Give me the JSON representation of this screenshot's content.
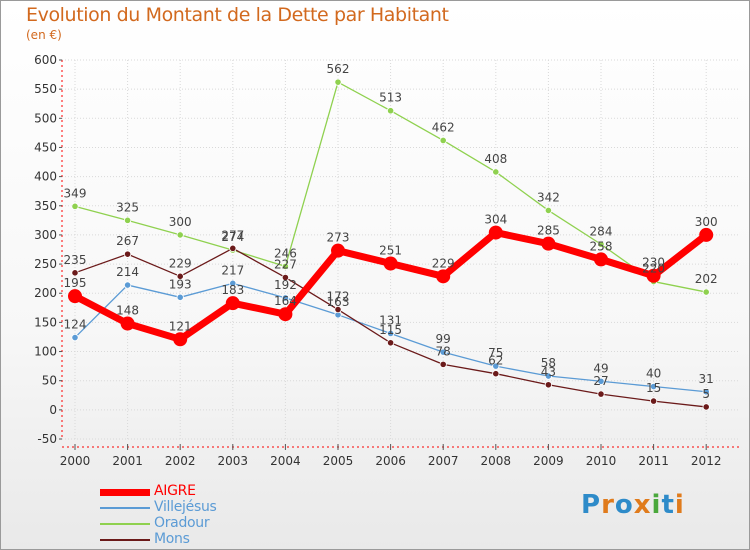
{
  "title": "Evolution du Montant de la Dette par Habitant",
  "unit": "(en €)",
  "logo": {
    "text": "Proxiti",
    "colors": [
      "#2e8bc9",
      "#e07b1c",
      "#2e8bc9",
      "#e07b1c",
      "#4aa83c",
      "#2e8bc9",
      "#e07b1c"
    ]
  },
  "chart_data": {
    "type": "line",
    "x": [
      "2000",
      "2001",
      "2002",
      "2003",
      "2004",
      "2005",
      "2006",
      "2007",
      "2008",
      "2009",
      "2010",
      "2011",
      "2012"
    ],
    "ylim": [
      -50,
      600
    ],
    "yticks": [
      "-50",
      "0",
      "50",
      "100",
      "150",
      "200",
      "250",
      "300",
      "350",
      "400",
      "450",
      "500",
      "550",
      "600"
    ],
    "grid": true,
    "legend_position": "bottom-left",
    "series": [
      {
        "name": "Oradour",
        "color": "#8fd14f",
        "values": [
          349,
          325,
          300,
          274,
          246,
          562,
          513,
          462,
          408,
          342,
          284,
          220,
          202
        ],
        "labels": [
          "349",
          "325",
          "300",
          "274",
          "246",
          "562",
          "513",
          "462",
          "408",
          "342",
          "284",
          "220",
          "202"
        ]
      },
      {
        "name": "Villejésus",
        "color": "#5b9bd5",
        "values": [
          124,
          214,
          193,
          217,
          192,
          163,
          131,
          99,
          75,
          58,
          49,
          40,
          31
        ],
        "labels": [
          "124",
          "214",
          "193",
          "217",
          "192",
          "163",
          "131",
          "99",
          "75",
          "58",
          "49",
          "40",
          "31"
        ]
      },
      {
        "name": "Mons",
        "color": "#6b1a1a",
        "values": [
          235,
          267,
          229,
          277,
          227,
          172,
          115,
          78,
          62,
          43,
          27,
          15,
          5
        ],
        "labels": [
          "235",
          "267",
          "229",
          "277",
          "227",
          "172",
          "115",
          "78",
          "62",
          "43",
          "27",
          "15",
          "5"
        ]
      },
      {
        "name": "AIGRE",
        "color": "#ff0000",
        "values": [
          195,
          148,
          121,
          183,
          164,
          273,
          251,
          229,
          304,
          285,
          258,
          230,
          300
        ],
        "labels": [
          "195",
          "148",
          "121",
          "183",
          "164",
          "273",
          "251",
          "229",
          "304",
          "285",
          "258",
          "230",
          "300"
        ]
      }
    ],
    "legend": [
      {
        "name": "AIGRE",
        "color": "#ff0000",
        "text_color": "#ff0000"
      },
      {
        "name": "Villejésus",
        "color": "#5b9bd5",
        "text_color": "#5b9bd5"
      },
      {
        "name": "Oradour",
        "color": "#8fd14f",
        "text_color": "#5b9bd5"
      },
      {
        "name": "Mons",
        "color": "#6b1a1a",
        "text_color": "#5b9bd5"
      }
    ]
  }
}
